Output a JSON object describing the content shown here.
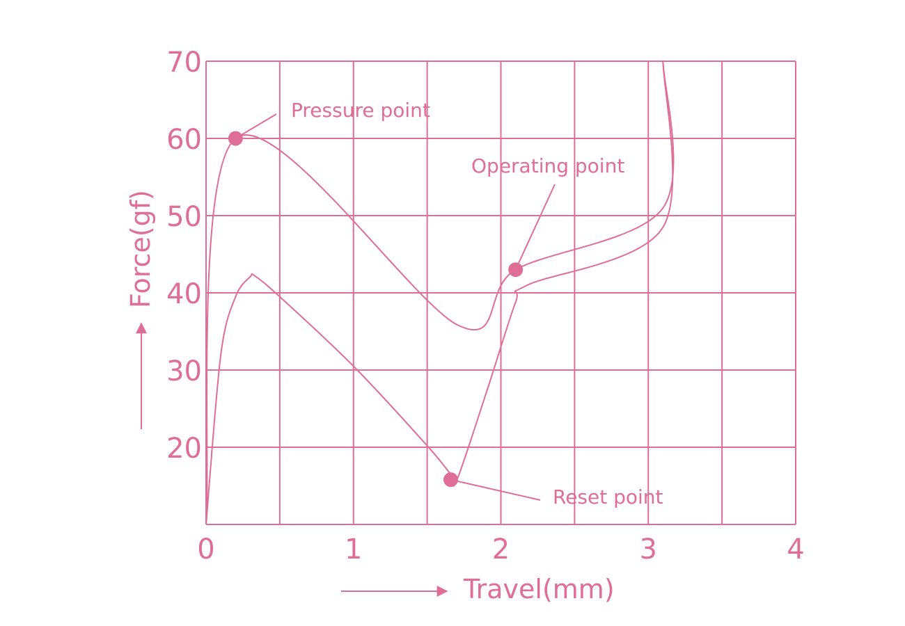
{
  "chart_data": {
    "type": "line",
    "title": "",
    "xlabel": "Travel(mm)",
    "ylabel": "Force(gf)",
    "xlim": [
      0,
      4
    ],
    "ylim": [
      10,
      70
    ],
    "x_ticks": [
      "0",
      "1",
      "2",
      "3",
      "4"
    ],
    "y_ticks": [
      "20",
      "30",
      "40",
      "50",
      "60",
      "70"
    ],
    "grid": true,
    "color": "#de6e95",
    "series": [
      {
        "x": [
          0,
          0.2,
          1.71,
          2.1,
          3.1,
          3.1
        ],
        "y": [
          10,
          60,
          35.8,
          43,
          51,
          70
        ]
      },
      {
        "x": [
          0,
          0.1,
          0.2,
          0.3,
          0.33,
          0.5,
          1.0,
          1.5,
          1.66,
          1.7,
          1.9,
          2.1,
          2.18,
          3.1,
          3.1
        ],
        "y": [
          10,
          32,
          39.5,
          42.1,
          42.2,
          39.5,
          30.5,
          20.2,
          16.5,
          15.7,
          27,
          38.8,
          41,
          48.5,
          70
        ]
      }
    ],
    "annotations": [
      {
        "label": "Pressure point",
        "x": 0.2,
        "y": 60
      },
      {
        "label": "Operating point",
        "x": 2.1,
        "y": 43
      },
      {
        "label": "Reset point",
        "x": 1.66,
        "y": 15.8
      }
    ]
  }
}
